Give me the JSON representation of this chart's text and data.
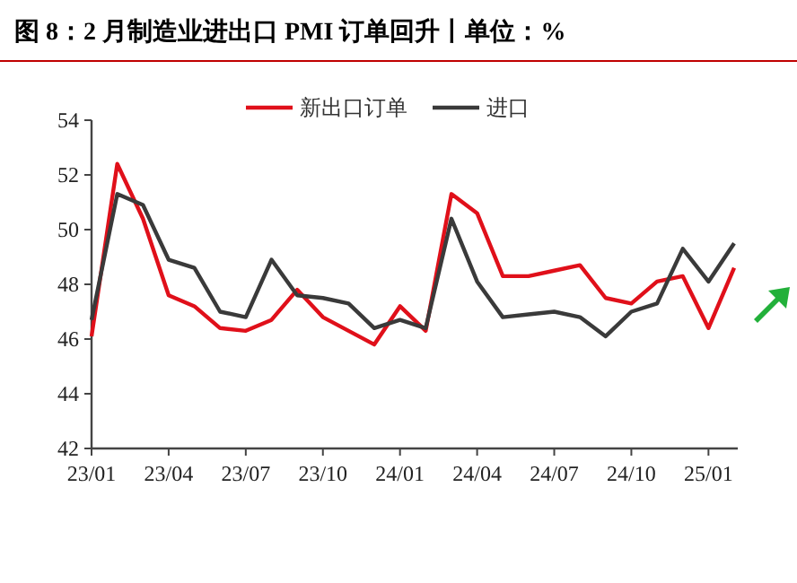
{
  "chart_data": {
    "type": "line",
    "title": "图 8：2 月制造业进出口 PMI 订单回升丨单位：%",
    "categories": [
      "23/01",
      null,
      null,
      "23/04",
      null,
      null,
      "23/07",
      null,
      null,
      "23/10",
      null,
      null,
      "24/01",
      null,
      null,
      "24/04",
      null,
      null,
      "24/07",
      null,
      null,
      "24/10",
      null,
      null,
      "25/01",
      null
    ],
    "series": [
      {
        "name": "新出口订单",
        "color": "#e0101a",
        "values": [
          46.1,
          52.4,
          50.4,
          47.6,
          47.2,
          46.4,
          46.3,
          46.7,
          47.8,
          46.8,
          46.3,
          45.8,
          47.2,
          46.3,
          51.3,
          50.6,
          48.3,
          48.3,
          48.5,
          48.7,
          47.5,
          47.3,
          48.1,
          48.3,
          46.4,
          48.6
        ]
      },
      {
        "name": "进口",
        "color": "#3a3a3a",
        "values": [
          46.7,
          51.3,
          50.9,
          48.9,
          48.6,
          47.0,
          46.8,
          48.9,
          47.6,
          47.5,
          47.3,
          46.4,
          46.7,
          46.4,
          50.4,
          48.1,
          46.8,
          46.9,
          47.0,
          46.8,
          46.1,
          47.0,
          47.3,
          49.3,
          48.1,
          49.5
        ]
      }
    ],
    "ylim": [
      42,
      54
    ],
    "yticks": [
      42,
      44,
      46,
      48,
      50,
      52,
      54
    ],
    "grid": false,
    "legend": "top",
    "marker": "none",
    "line_style": "solid"
  }
}
